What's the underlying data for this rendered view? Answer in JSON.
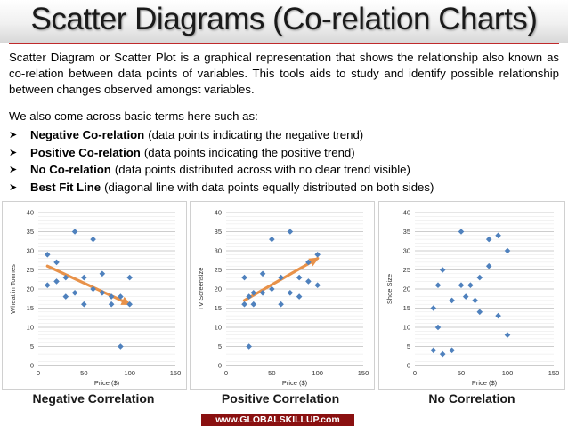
{
  "slide": {
    "title": "Scatter Diagrams (Co-relation Charts)",
    "intro": "Scatter Diagram or Scatter Plot is a graphical representation that shows the relationship also known as co-relation between data points of variables. This tools aids to study and identify possible relationship between changes observed amongst variables.",
    "lead": "We also come across basic terms here such as:",
    "bullets": [
      {
        "term": "Negative Co-relation",
        "desc": "(data points indicating the negative trend)"
      },
      {
        "term": "Positive Co-relation",
        "desc": "(data points indicating the positive trend)"
      },
      {
        "term": "No Co-relation",
        "desc": "(data points distributed across with no clear trend visible)"
      },
      {
        "term": "Best Fit Line",
        "desc": "(diagonal line with data points equally distributed on both sides)"
      }
    ],
    "footer": "www.GLOBALSKILLUP.com",
    "colors": {
      "accent": "#c0292b",
      "marker": "#4f81bd",
      "trend": "#e8924a",
      "footer_bg": "#8a1010"
    }
  },
  "chart_data": [
    {
      "type": "scatter",
      "title": "",
      "caption": "Negative Correlation",
      "xlabel": "Price ($)",
      "ylabel": "Wheat in Tonnes",
      "xlim": [
        0,
        150
      ],
      "ylim": [
        0,
        40
      ],
      "xticks": [
        0,
        50,
        100,
        150
      ],
      "yticks": [
        0,
        5,
        10,
        15,
        20,
        25,
        30,
        35,
        40
      ],
      "points": [
        [
          10,
          29
        ],
        [
          10,
          21
        ],
        [
          20,
          27
        ],
        [
          20,
          22
        ],
        [
          30,
          23
        ],
        [
          30,
          18
        ],
        [
          40,
          35
        ],
        [
          40,
          19
        ],
        [
          50,
          23
        ],
        [
          50,
          16
        ],
        [
          60,
          33
        ],
        [
          60,
          20
        ],
        [
          70,
          24
        ],
        [
          70,
          19
        ],
        [
          80,
          18
        ],
        [
          80,
          16
        ],
        [
          90,
          18
        ],
        [
          90,
          5
        ],
        [
          100,
          23
        ],
        [
          100,
          16
        ]
      ],
      "trend": [
        [
          10,
          26
        ],
        [
          100,
          16
        ]
      ]
    },
    {
      "type": "scatter",
      "title": "",
      "caption": "Positive Correlation",
      "xlabel": "Price ($)",
      "ylabel": "TV Screensize",
      "xlim": [
        0,
        150
      ],
      "ylim": [
        0,
        40
      ],
      "xticks": [
        0,
        50,
        100,
        150
      ],
      "yticks": [
        0,
        5,
        10,
        15,
        20,
        25,
        30,
        35,
        40
      ],
      "points": [
        [
          20,
          23
        ],
        [
          20,
          16
        ],
        [
          25,
          5
        ],
        [
          25,
          18
        ],
        [
          30,
          19
        ],
        [
          30,
          16
        ],
        [
          40,
          24
        ],
        [
          40,
          19
        ],
        [
          50,
          33
        ],
        [
          50,
          20
        ],
        [
          60,
          23
        ],
        [
          60,
          16
        ],
        [
          70,
          35
        ],
        [
          70,
          19
        ],
        [
          80,
          23
        ],
        [
          80,
          18
        ],
        [
          90,
          27
        ],
        [
          90,
          22
        ],
        [
          100,
          29
        ],
        [
          100,
          21
        ]
      ],
      "trend": [
        [
          20,
          17
        ],
        [
          100,
          28
        ]
      ]
    },
    {
      "type": "scatter",
      "title": "",
      "caption": "No Correlation",
      "xlabel": "Price ($)",
      "ylabel": "Shoe Size",
      "xlim": [
        0,
        150
      ],
      "ylim": [
        0,
        40
      ],
      "xticks": [
        0,
        50,
        100,
        150
      ],
      "yticks": [
        0,
        5,
        10,
        15,
        20,
        25,
        30,
        35,
        40
      ],
      "points": [
        [
          20,
          15
        ],
        [
          20,
          4
        ],
        [
          25,
          21
        ],
        [
          25,
          10
        ],
        [
          30,
          25
        ],
        [
          30,
          3
        ],
        [
          40,
          17
        ],
        [
          40,
          4
        ],
        [
          50,
          35
        ],
        [
          50,
          21
        ],
        [
          55,
          18
        ],
        [
          60,
          21
        ],
        [
          65,
          17
        ],
        [
          70,
          23
        ],
        [
          70,
          14
        ],
        [
          80,
          33
        ],
        [
          80,
          26
        ],
        [
          90,
          34
        ],
        [
          90,
          13
        ],
        [
          100,
          30
        ],
        [
          100,
          8
        ]
      ],
      "trend": null
    }
  ]
}
